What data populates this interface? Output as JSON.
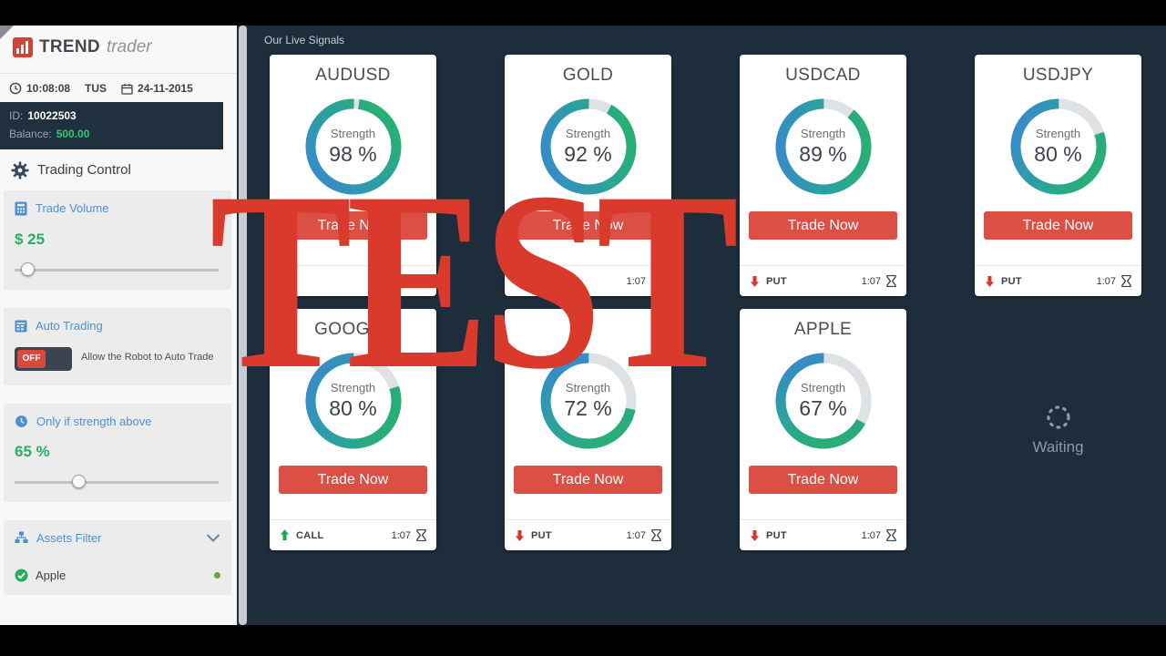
{
  "sidebar": {
    "logo": {
      "brand": "TREND",
      "suffix": "trader"
    },
    "status": {
      "time": "10:08:08",
      "day": "TUS",
      "date": "24-11-2015"
    },
    "account": {
      "id_label": "ID:",
      "id_value": "10022503",
      "balance_label": "Balance:",
      "balance_value": "500.00"
    },
    "control_title": "Trading Control",
    "trade_volume": {
      "label": "Trade Volume",
      "value": "$ 25",
      "slider_pct": 6
    },
    "auto_trading": {
      "label": "Auto Trading",
      "toggle_label": "OFF",
      "description": "Allow the Robot to Auto Trade"
    },
    "strength_filter": {
      "label": "Only if strength above",
      "value": "65 %",
      "slider_pct": 31
    },
    "assets_filter": {
      "label": "Assets Filter",
      "items": [
        {
          "name": "Apple",
          "checked": true
        }
      ]
    }
  },
  "main": {
    "header": "Our Live Signals",
    "strength_label": "Strength",
    "trade_label": "Trade Now",
    "waiting_label": "Waiting",
    "cards": [
      {
        "symbol": "AUDUSD",
        "strength": 98,
        "direction": "",
        "time": "1:07"
      },
      {
        "symbol": "GOLD",
        "strength": 92,
        "direction": "PUT",
        "time": "1:07"
      },
      {
        "symbol": "USDCAD",
        "strength": 89,
        "direction": "PUT",
        "time": "1:07"
      },
      {
        "symbol": "USDJPY",
        "strength": 80,
        "direction": "PUT",
        "time": "1:07"
      },
      {
        "symbol": "GOOGLE",
        "strength": 80,
        "direction": "CALL",
        "time": "1:07"
      },
      {
        "symbol": "",
        "strength": 72,
        "direction": "PUT",
        "time": "1:07"
      },
      {
        "symbol": "APPLE",
        "strength": 67,
        "direction": "PUT",
        "time": "1:07"
      }
    ]
  },
  "overlay": {
    "text": "TEST",
    "color": "#d93a2b"
  },
  "colors": {
    "accent_blue": "#4a90d2",
    "value_green": "#27ae60",
    "button_red": "#dc4f44",
    "ring_blue": "#3a86d4",
    "ring_green": "#27b463",
    "background_dark": "#1e2d3b",
    "call_green": "#17a94b",
    "put_red": "#d6382c"
  }
}
